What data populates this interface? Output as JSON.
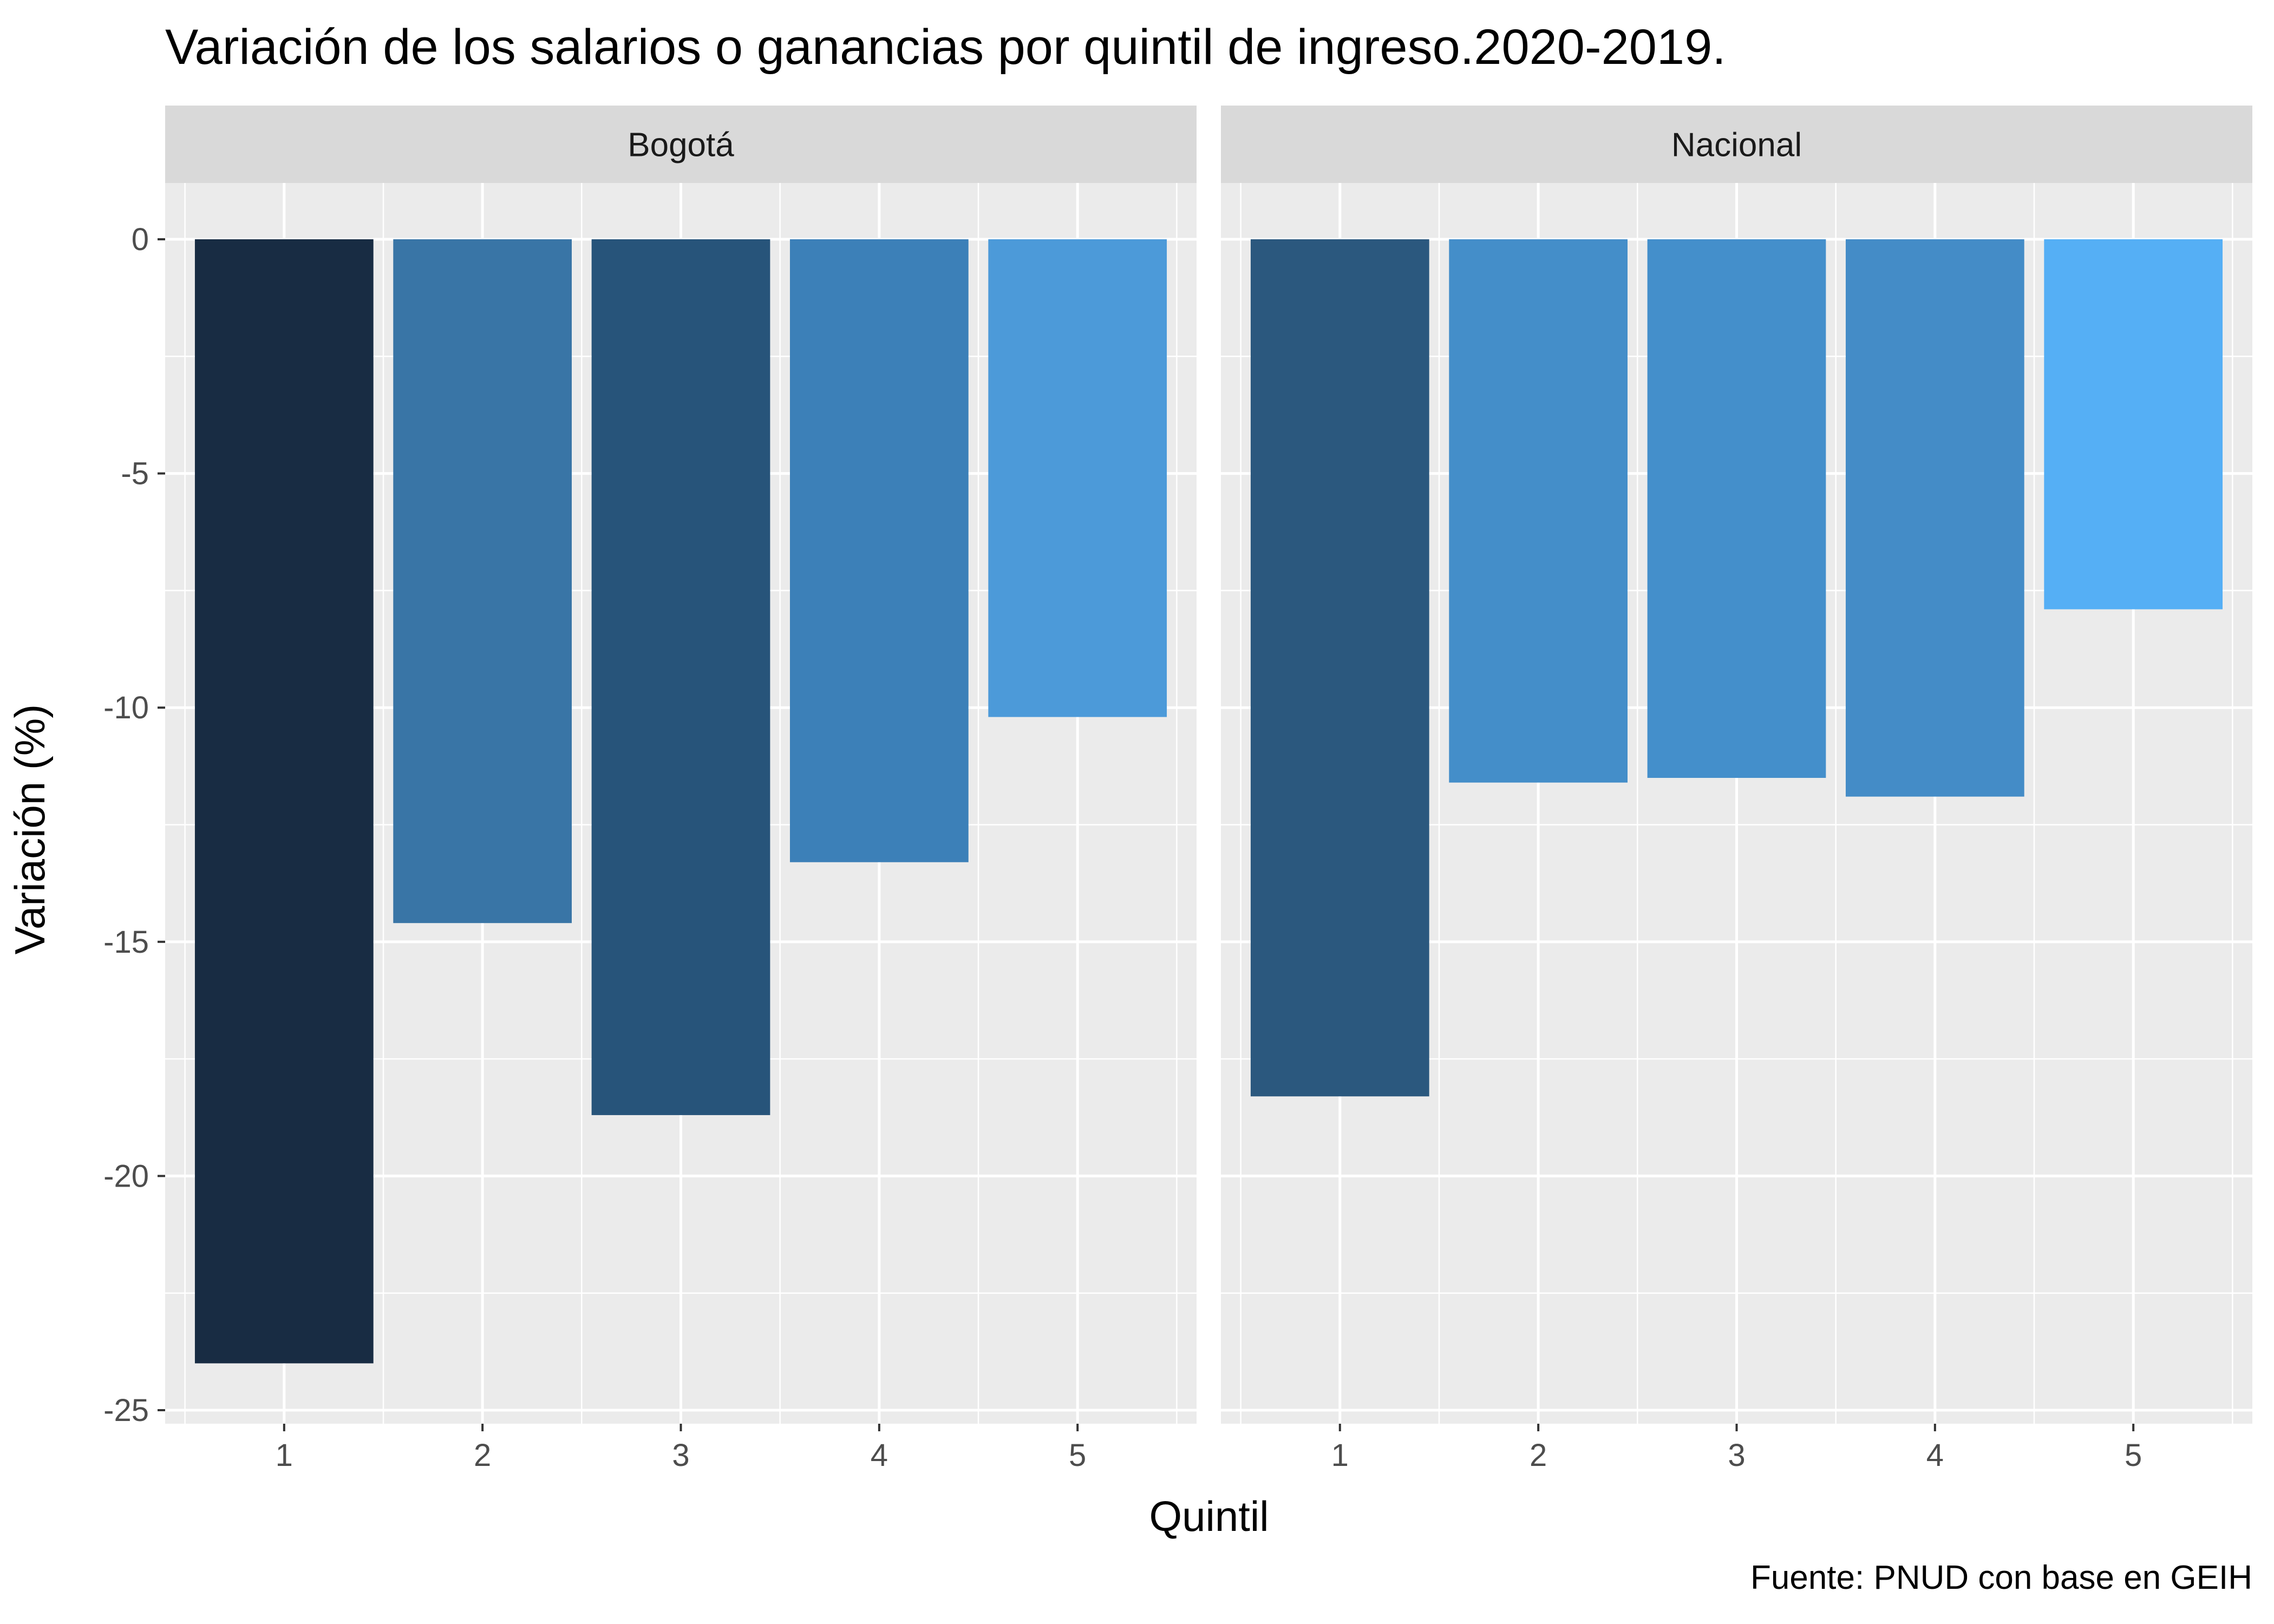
{
  "chart_data": {
    "type": "bar",
    "title": "Variación de los salarios o ganancias por quintil de ingreso.2020-2019.",
    "xlabel": "Quintil",
    "ylabel": "Variación (%)",
    "caption": "Fuente: PNUD con base en GEIH",
    "categories": [
      "1",
      "2",
      "3",
      "4",
      "5"
    ],
    "yticks": [
      "0",
      "-5",
      "-10",
      "-15",
      "-20",
      "-25"
    ],
    "ylim": [
      -25,
      0
    ],
    "grid": true,
    "legend": "none",
    "facets": [
      {
        "name": "Bogotá",
        "values": [
          -24.0,
          -14.6,
          -18.7,
          -13.3,
          -10.2
        ],
        "colors": [
          "#182c43",
          "#3975a6",
          "#27547a",
          "#3c80b8",
          "#4c9ad9"
        ]
      },
      {
        "name": "Nacional",
        "values": [
          -18.3,
          -11.6,
          -11.5,
          -11.9,
          -7.9
        ],
        "colors": [
          "#2b587e",
          "#448ec9",
          "#448fcb",
          "#448cc7",
          "#55aff5"
        ]
      }
    ]
  }
}
